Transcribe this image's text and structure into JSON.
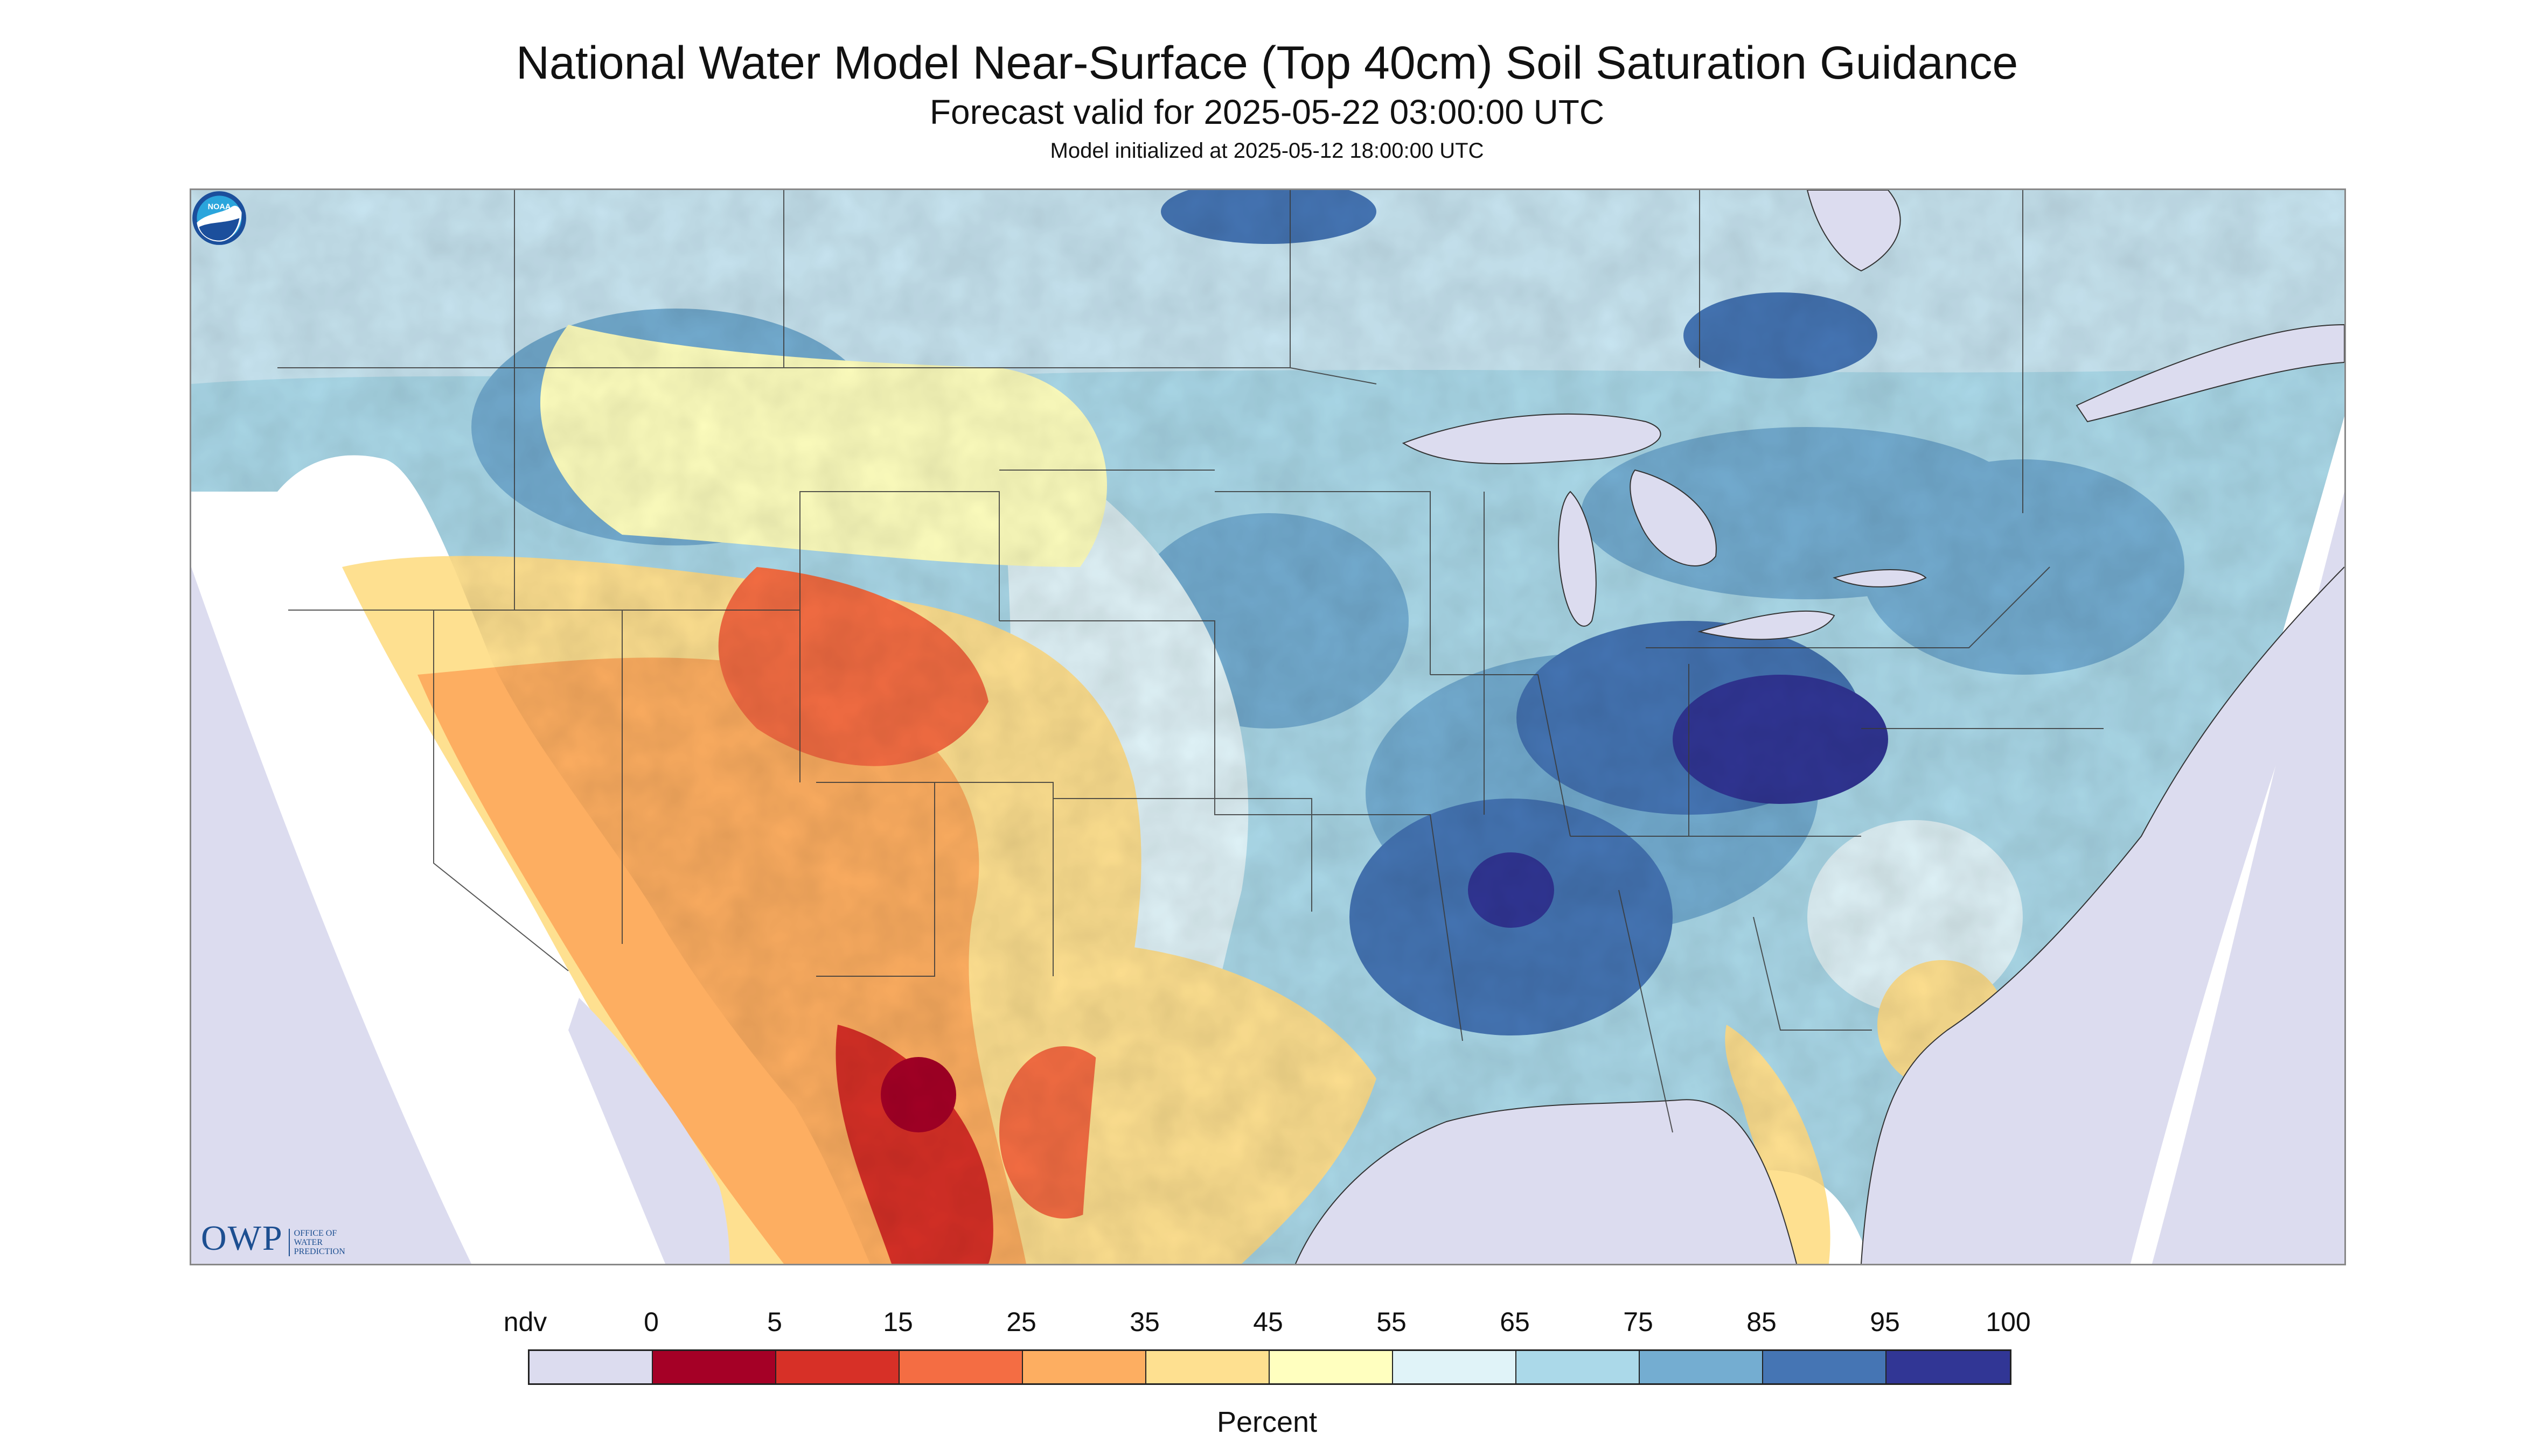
{
  "header": {
    "title": "National Water Model Near-Surface (Top 40cm) Soil Saturation Guidance",
    "subtitle": "Forecast valid for 2025-05-22 03:00:00 UTC",
    "init": "Model initialized at 2025-05-12 18:00:00 UTC"
  },
  "map": {
    "region": "Continental United States",
    "logo_left": {
      "main": "OWP",
      "sub": "Office of Water Prediction"
    },
    "logo_right": "noaa-logo",
    "colors": {
      "ndv": "#dcdcef",
      "water": "#dcdcef",
      "land_boundary": "#333333"
    }
  },
  "legend": {
    "unit": "Percent",
    "ticks": [
      "ndv",
      "0",
      "5",
      "15",
      "25",
      "35",
      "45",
      "55",
      "65",
      "75",
      "85",
      "95",
      "100"
    ],
    "bins": [
      {
        "label": "ndv",
        "color": "#dcdcef"
      },
      {
        "label": "0-5",
        "color": "#a50026"
      },
      {
        "label": "5-15",
        "color": "#d73027"
      },
      {
        "label": "15-25",
        "color": "#f46d43"
      },
      {
        "label": "25-35",
        "color": "#fdae61"
      },
      {
        "label": "35-45",
        "color": "#fee090"
      },
      {
        "label": "45-55",
        "color": "#ffffbf"
      },
      {
        "label": "55-65",
        "color": "#e0f3f8"
      },
      {
        "label": "65-75",
        "color": "#abd9e9"
      },
      {
        "label": "75-85",
        "color": "#74add1"
      },
      {
        "label": "85-95",
        "color": "#4575b4"
      },
      {
        "label": "95-100",
        "color": "#313695"
      }
    ]
  }
}
